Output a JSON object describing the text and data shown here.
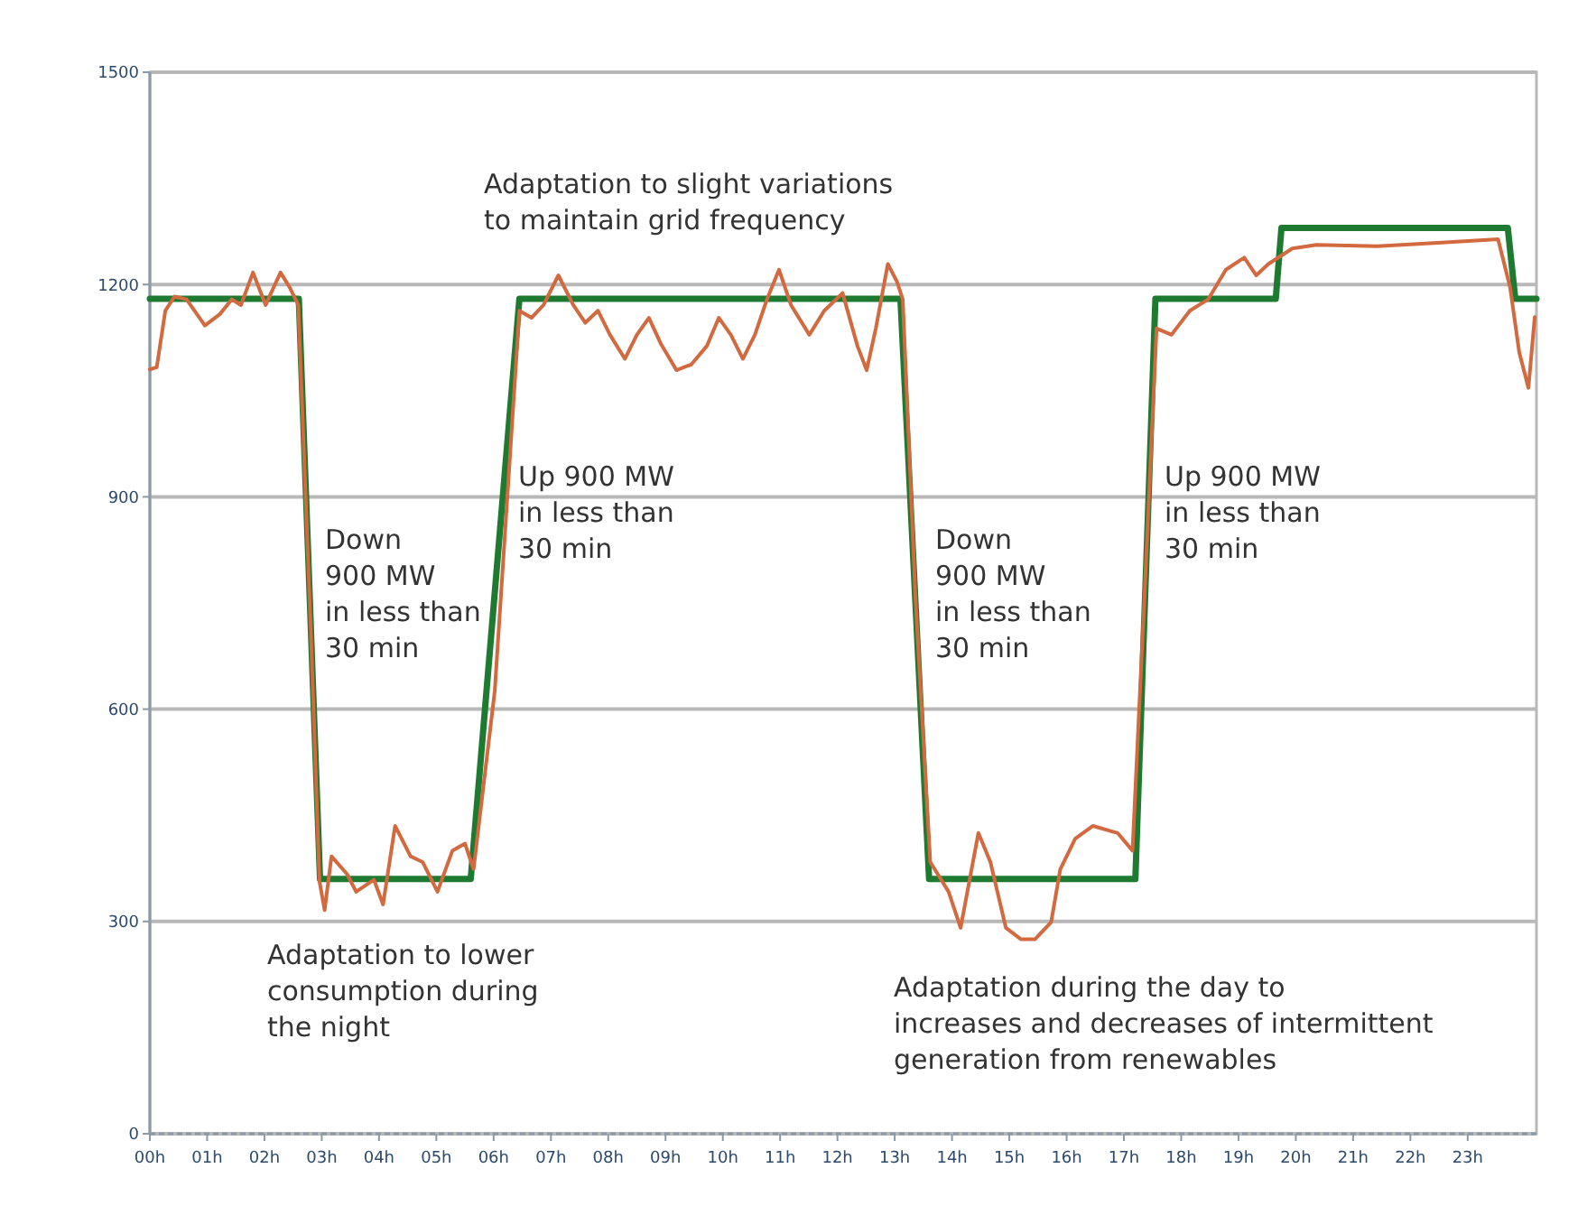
{
  "chart_data": {
    "type": "line",
    "xlim": [
      0,
      24.2
    ],
    "ylim": [
      0,
      1500
    ],
    "xticks": [
      {
        "value": 0,
        "label": "00h"
      },
      {
        "value": 1,
        "label": "01h"
      },
      {
        "value": 2,
        "label": "02h"
      },
      {
        "value": 3,
        "label": "03h"
      },
      {
        "value": 4,
        "label": "04h"
      },
      {
        "value": 5,
        "label": "05h"
      },
      {
        "value": 6,
        "label": "06h"
      },
      {
        "value": 7,
        "label": "07h"
      },
      {
        "value": 8,
        "label": "08h"
      },
      {
        "value": 9,
        "label": "09h"
      },
      {
        "value": 10,
        "label": "10h"
      },
      {
        "value": 11,
        "label": "11h"
      },
      {
        "value": 12,
        "label": "12h"
      },
      {
        "value": 13,
        "label": "13h"
      },
      {
        "value": 14,
        "label": "14h"
      },
      {
        "value": 15,
        "label": "15h"
      },
      {
        "value": 16,
        "label": "16h"
      },
      {
        "value": 17,
        "label": "17h"
      },
      {
        "value": 18,
        "label": "18h"
      },
      {
        "value": 19,
        "label": "19h"
      },
      {
        "value": 20,
        "label": "20h"
      },
      {
        "value": 21,
        "label": "21h"
      },
      {
        "value": 22,
        "label": "22h"
      },
      {
        "value": 23,
        "label": "23h"
      }
    ],
    "yticks": [
      0,
      300,
      600,
      900,
      1200,
      1500
    ],
    "grid": "y",
    "line_style": "solid",
    "marker": "none",
    "series": [
      {
        "color": "#1e7a30",
        "x": [
          0,
          2.6,
          2.97,
          5.6,
          6.45,
          13.1,
          13.6,
          17.2,
          17.55,
          19.65,
          19.75,
          23.7,
          23.83,
          24.2
        ],
        "values": [
          1180,
          1180,
          360,
          360,
          1180,
          1180,
          360,
          360,
          1180,
          1180,
          1280,
          1280,
          1180,
          1180
        ]
      },
      {
        "color": "#d2693f",
        "x": [
          0,
          0.12,
          0.27,
          0.43,
          0.64,
          0.96,
          1.22,
          1.43,
          1.59,
          1.8,
          2.02,
          2.28,
          2.44,
          2.59,
          2.81,
          2.96,
          3.05,
          3.17,
          3.44,
          3.6,
          3.91,
          4.07,
          4.28,
          4.55,
          4.76,
          5.02,
          5.28,
          5.5,
          5.65,
          6.02,
          6.45,
          6.66,
          6.87,
          7.13,
          7.39,
          7.6,
          7.82,
          8.03,
          8.29,
          8.5,
          8.71,
          8.92,
          9.19,
          9.45,
          9.72,
          9.93,
          10.14,
          10.35,
          10.56,
          10.77,
          10.98,
          11.19,
          11.51,
          11.77,
          12.09,
          12.35,
          12.51,
          12.67,
          12.88,
          13.04,
          13.14,
          13.36,
          13.62,
          13.94,
          14.15,
          14.46,
          14.67,
          14.94,
          15.2,
          15.45,
          15.73,
          15.89,
          16.15,
          16.46,
          16.89,
          17.15,
          17.36,
          17.57,
          17.83,
          18.15,
          18.47,
          18.78,
          19.1,
          19.31,
          19.52,
          19.94,
          20.36,
          21.42,
          22.48,
          23.53,
          23.74,
          23.9,
          24.06,
          24.17
        ],
        "values": [
          1080,
          1083,
          1163,
          1183,
          1179,
          1142,
          1158,
          1179,
          1171,
          1217,
          1171,
          1217,
          1196,
          1171,
          711,
          357,
          316,
          392,
          367,
          342,
          359,
          324,
          435,
          392,
          384,
          342,
          400,
          410,
          374,
          626,
          1163,
          1153,
          1171,
          1213,
          1171,
          1146,
          1163,
          1129,
          1095,
          1129,
          1153,
          1116,
          1079,
          1087,
          1113,
          1153,
          1129,
          1095,
          1129,
          1179,
          1221,
          1171,
          1129,
          1163,
          1188,
          1113,
          1079,
          1138,
          1229,
          1204,
          1179,
          761,
          384,
          342,
          291,
          425,
          384,
          291,
          275,
          275,
          299,
          374,
          417,
          435,
          425,
          400,
          761,
          1138,
          1129,
          1163,
          1179,
          1221,
          1238,
          1213,
          1229,
          1251,
          1256,
          1254,
          1259,
          1264,
          1196,
          1104,
          1054,
          1154
        ]
      }
    ],
    "annotations": [
      "Adaptation to slight variations\nto maintain grid frequency",
      "Down\n900 MW\nin less than\n30 min",
      "Up 900 MW\nin less than\n30 min",
      "Adaptation to lower\nconsumption during\nthe night",
      "Down\n900 MW\nin less than\n30 min",
      "Up 900 MW\nin less than\n30 min",
      "Adaptation during the day to\nincreases and decreases of intermittent\ngeneration from renewables"
    ]
  }
}
